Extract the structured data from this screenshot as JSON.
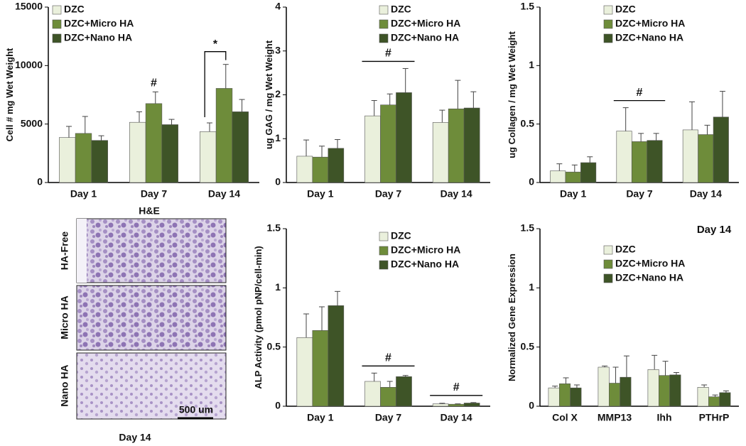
{
  "chart_data": [
    {
      "type": "bar",
      "y_label": "Cell # mg Wet Weight",
      "categories": [
        "Day 1",
        "Day 7",
        "Day 14"
      ],
      "series": [
        {
          "name": "DZC",
          "color": "#eaf0dc",
          "values": [
            3850,
            5150,
            4350
          ],
          "errors": [
            950,
            900,
            750
          ]
        },
        {
          "name": "DZC+Micro HA",
          "color": "#6e8c3a",
          "values": [
            4200,
            6750,
            8050
          ],
          "errors": [
            1450,
            1000,
            2050
          ]
        },
        {
          "name": "DZC+Nano HA",
          "color": "#3e5427",
          "values": [
            3600,
            4950,
            6050
          ],
          "errors": [
            400,
            450,
            1050
          ]
        }
      ],
      "ylim": [
        0,
        15000
      ],
      "yticks": [
        0,
        5000,
        10000,
        15000
      ],
      "annotations": [
        "#",
        "*"
      ]
    },
    {
      "type": "bar",
      "y_label": "ug GAG / mg Wet Weight",
      "categories": [
        "Day 1",
        "Day 7",
        "Day 14"
      ],
      "series": [
        {
          "name": "DZC",
          "color": "#eaf0dc",
          "values": [
            0.6,
            1.52,
            1.37
          ],
          "errors": [
            0.37,
            0.35,
            0.28
          ]
        },
        {
          "name": "DZC+Micro HA",
          "color": "#6e8c3a",
          "values": [
            0.58,
            1.77,
            1.68
          ],
          "errors": [
            0.25,
            0.25,
            0.65
          ]
        },
        {
          "name": "DZC+Nano HA",
          "color": "#3e5427",
          "values": [
            0.78,
            2.05,
            1.7
          ],
          "errors": [
            0.2,
            0.55,
            0.37
          ]
        }
      ],
      "ylim": [
        0,
        4
      ],
      "yticks": [
        0,
        1,
        2,
        3,
        4
      ],
      "annotations": [
        "#"
      ]
    },
    {
      "type": "bar",
      "y_label": "ug Collagen / mg Wet Weight",
      "categories": [
        "Day 1",
        "Day 7",
        "Day 14"
      ],
      "series": [
        {
          "name": "DZC",
          "color": "#eaf0dc",
          "values": [
            0.1,
            0.44,
            0.45
          ],
          "errors": [
            0.06,
            0.2,
            0.24
          ]
        },
        {
          "name": "DZC+Micro HA",
          "color": "#6e8c3a",
          "values": [
            0.09,
            0.35,
            0.41
          ],
          "errors": [
            0.06,
            0.07,
            0.08
          ]
        },
        {
          "name": "DZC+Nano HA",
          "color": "#3e5427",
          "values": [
            0.17,
            0.36,
            0.56
          ],
          "errors": [
            0.05,
            0.06,
            0.22
          ]
        }
      ],
      "ylim": [
        0,
        1.5
      ],
      "yticks": [
        0,
        0.5,
        1,
        1.5
      ],
      "annotations": [
        "#"
      ]
    },
    {
      "type": "bar",
      "y_label": "ALP Activity (pmol pNP/cell-min)",
      "categories": [
        "Day 1",
        "Day 7",
        "Day 14"
      ],
      "series": [
        {
          "name": "DZC",
          "color": "#eaf0dc",
          "values": [
            0.58,
            0.21,
            0.02
          ],
          "errors": [
            0.2,
            0.07,
            0.005
          ]
        },
        {
          "name": "DZC+Micro HA",
          "color": "#6e8c3a",
          "values": [
            0.64,
            0.16,
            0.017
          ],
          "errors": [
            0.2,
            0.05,
            0.003
          ]
        },
        {
          "name": "DZC+Nano HA",
          "color": "#3e5427",
          "values": [
            0.85,
            0.25,
            0.027
          ],
          "errors": [
            0.12,
            0.01,
            0.004
          ]
        }
      ],
      "ylim": [
        0,
        1.5
      ],
      "yticks": [
        0,
        0.5,
        1,
        1.5
      ],
      "annotations": [
        "#",
        "#"
      ]
    },
    {
      "type": "bar",
      "y_label": "Normalized Gene Expression",
      "subtitle": "Day 14",
      "categories": [
        "Col X",
        "MMP13",
        "Ihh",
        "PTHrP"
      ],
      "series": [
        {
          "name": "DZC",
          "color": "#eaf0dc",
          "values": [
            0.155,
            0.33,
            0.31,
            0.16
          ],
          "errors": [
            0.015,
            0.01,
            0.12,
            0.02
          ]
        },
        {
          "name": "DZC+Micro HA",
          "color": "#6e8c3a",
          "values": [
            0.19,
            0.195,
            0.26,
            0.08
          ],
          "errors": [
            0.05,
            0.135,
            0.12,
            0.015
          ]
        },
        {
          "name": "DZC+Nano HA",
          "color": "#3e5427",
          "values": [
            0.155,
            0.245,
            0.265,
            0.115
          ],
          "errors": [
            0.025,
            0.18,
            0.02,
            0.015
          ]
        }
      ],
      "ylim": [
        0,
        1.5
      ],
      "yticks": [
        0,
        0.5,
        1,
        1.5
      ]
    }
  ],
  "histology": {
    "title": "H&E",
    "rows": [
      "HA-Free",
      "Micro HA",
      "Nano HA"
    ],
    "scale_bar": "500 um",
    "caption": "Day 14"
  }
}
